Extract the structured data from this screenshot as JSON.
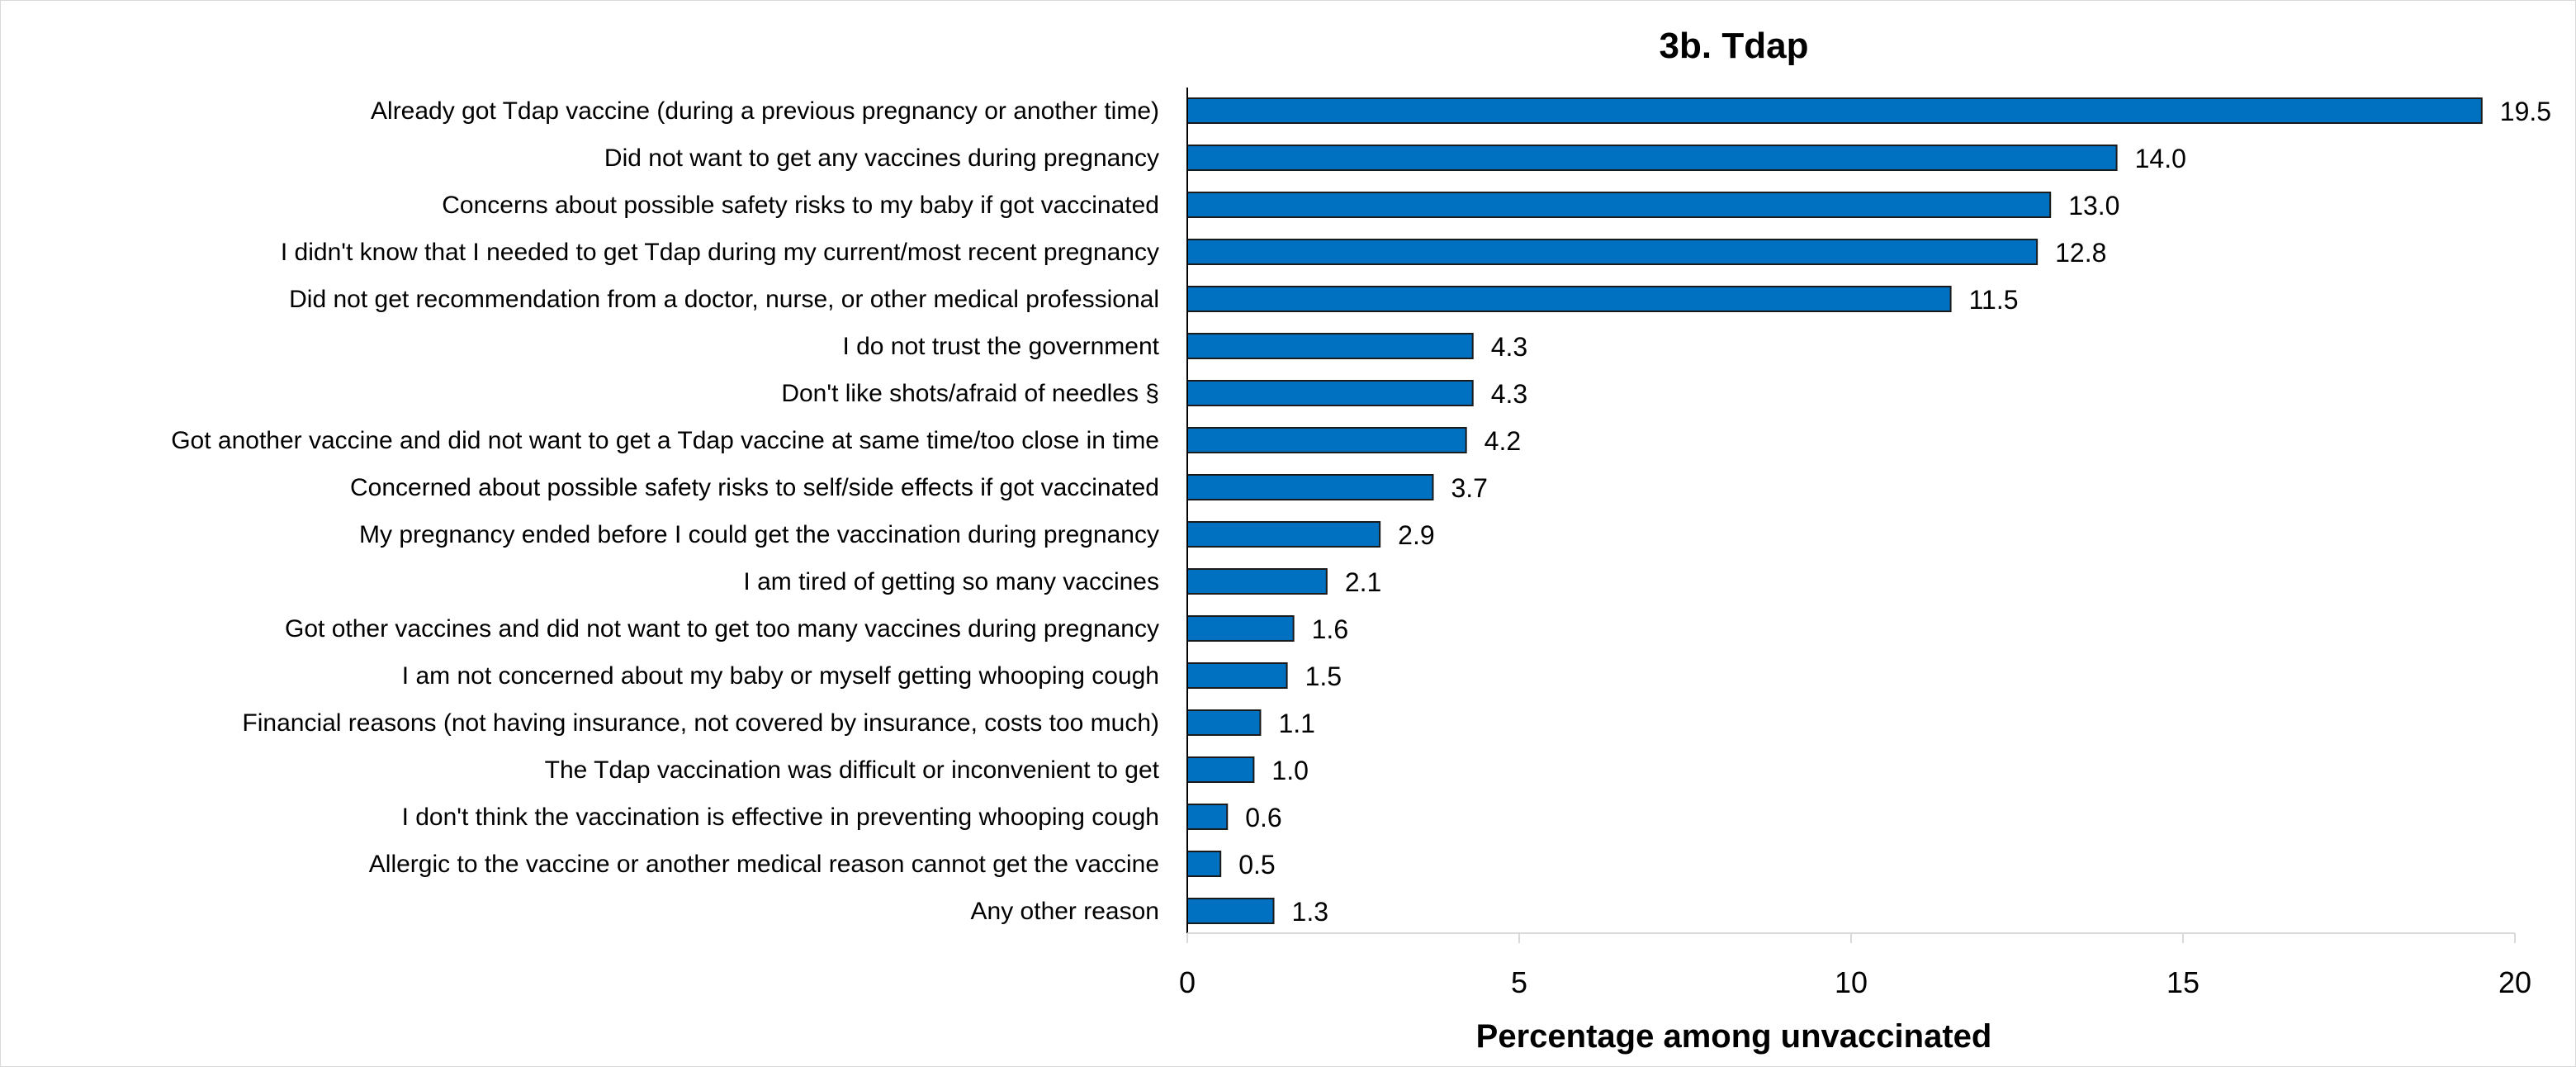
{
  "chart_data": {
    "type": "bar",
    "orientation": "horizontal",
    "title": "3b. Tdap",
    "xlabel": "Percentage among unvaccinated",
    "ylabel": "",
    "xlim": [
      0,
      20
    ],
    "xticks": [
      "0",
      "5",
      "10",
      "15",
      "20"
    ],
    "grid": false,
    "categories": [
      "Already got Tdap vaccine (during a previous pregnancy or another time)",
      "Did not want to get any vaccines during pregnancy",
      "Concerns about possible safety risks to my baby if got vaccinated",
      "I didn't know that I needed to get Tdap during my current/most recent pregnancy",
      "Did not get recommendation from a doctor, nurse, or other medical professional",
      "I do not trust the government",
      "Don't like shots/afraid of needles §",
      "Got another vaccine and did not want to get a Tdap vaccine at same time/too close in time",
      "Concerned about possible safety risks to self/side effects if got vaccinated",
      "My pregnancy ended before I could get the vaccination during pregnancy",
      "I am tired of getting so many vaccines",
      "Got other vaccines and did not want to get too many vaccines during pregnancy",
      "I am not concerned about my baby or myself getting whooping cough",
      "Financial reasons (not having insurance, not covered by insurance, costs too much)",
      "The Tdap vaccination was difficult or inconvenient to get",
      "I don't think the vaccination is effective in preventing whooping cough",
      "Allergic to the vaccine or another medical reason cannot get the vaccine",
      "Any other reason"
    ],
    "values": [
      19.5,
      14.0,
      13.0,
      12.8,
      11.5,
      4.3,
      4.3,
      4.2,
      3.7,
      2.9,
      2.1,
      1.6,
      1.5,
      1.1,
      1.0,
      0.6,
      0.5,
      1.3
    ],
    "value_labels": [
      "19.5",
      "14.0",
      "13.0",
      "12.8",
      "11.5",
      "4.3",
      "4.3",
      "4.2",
      "3.7",
      "2.9",
      "2.1",
      "1.6",
      "1.5",
      "1.1",
      "1.0",
      "0.6",
      "0.5",
      "1.3"
    ],
    "colors": {
      "bar_fill": "#0070C0",
      "bar_stroke": "#1a1a1a",
      "axis": "#000000",
      "gridline": "#d9d9d9"
    }
  }
}
